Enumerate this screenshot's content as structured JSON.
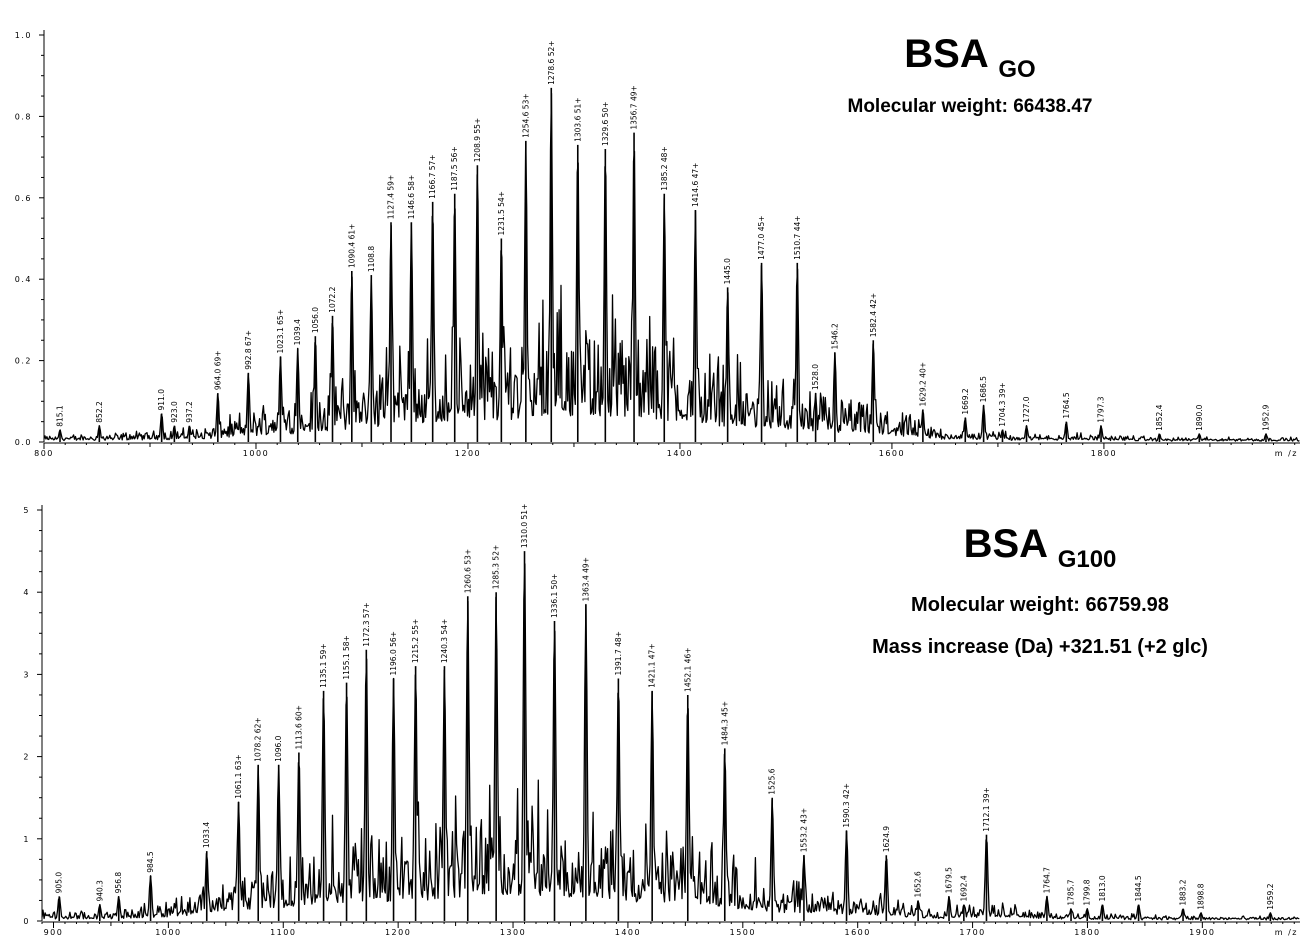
{
  "chart_data": [
    {
      "type": "line",
      "title": "BSA",
      "title_subscript": "GO",
      "subtitle": "Molecular weight: 66438.47",
      "annotation": "",
      "xlabel": "m /z",
      "xlim": [
        800,
        1985
      ],
      "ylim": [
        0,
        1.0
      ],
      "x_ticks": [
        800,
        1000,
        1200,
        1400,
        1600,
        1800
      ],
      "y_ticks": [
        {
          "v": 0.0,
          "label": "0.0"
        },
        {
          "v": 0.2,
          "label": "0.2"
        },
        {
          "v": 0.4,
          "label": "0.4"
        },
        {
          "v": 0.6,
          "label": "0.6"
        },
        {
          "v": 0.8,
          "label": "0.8"
        },
        {
          "v": 1.0,
          "label": "1.0"
        }
      ],
      "peaks": [
        {
          "x": 815.1,
          "y": 0.03,
          "label": "815.1"
        },
        {
          "x": 852.2,
          "y": 0.04,
          "label": "852.2"
        },
        {
          "x": 911.0,
          "y": 0.07,
          "label": "911.0"
        },
        {
          "x": 923.0,
          "y": 0.04,
          "label": "923.0"
        },
        {
          "x": 937.2,
          "y": 0.04,
          "label": "937.2"
        },
        {
          "x": 964.0,
          "y": 0.12,
          "label": "964.0 69+"
        },
        {
          "x": 992.8,
          "y": 0.17,
          "label": "992.8 67+"
        },
        {
          "x": 1023.1,
          "y": 0.21,
          "label": "1023.1 65+"
        },
        {
          "x": 1039.4,
          "y": 0.23,
          "label": "1039.4"
        },
        {
          "x": 1056.0,
          "y": 0.26,
          "label": "1056.0"
        },
        {
          "x": 1072.2,
          "y": 0.31,
          "label": "1072.2"
        },
        {
          "x": 1090.4,
          "y": 0.42,
          "label": "1090.4 61+"
        },
        {
          "x": 1108.8,
          "y": 0.41,
          "label": "1108.8"
        },
        {
          "x": 1127.4,
          "y": 0.54,
          "label": "1127.4 59+"
        },
        {
          "x": 1146.6,
          "y": 0.54,
          "label": "1146.6 58+"
        },
        {
          "x": 1166.7,
          "y": 0.59,
          "label": "1166.7 57+"
        },
        {
          "x": 1187.5,
          "y": 0.61,
          "label": "1187.5 56+"
        },
        {
          "x": 1208.9,
          "y": 0.68,
          "label": "1208.9 55+"
        },
        {
          "x": 1231.5,
          "y": 0.5,
          "label": "1231.5 54+"
        },
        {
          "x": 1254.6,
          "y": 0.74,
          "label": "1254.6 53+"
        },
        {
          "x": 1278.6,
          "y": 0.87,
          "label": "1278.6 52+"
        },
        {
          "x": 1303.6,
          "y": 0.73,
          "label": "1303.6 51+"
        },
        {
          "x": 1329.6,
          "y": 0.72,
          "label": "1329.6 50+"
        },
        {
          "x": 1356.7,
          "y": 0.76,
          "label": "1356.7 49+"
        },
        {
          "x": 1385.2,
          "y": 0.61,
          "label": "1385.2 48+"
        },
        {
          "x": 1414.6,
          "y": 0.57,
          "label": "1414.6 47+"
        },
        {
          "x": 1445.0,
          "y": 0.38,
          "label": "1445.0"
        },
        {
          "x": 1477.0,
          "y": 0.44,
          "label": "1477.0 45+"
        },
        {
          "x": 1510.7,
          "y": 0.44,
          "label": "1510.7 44+"
        },
        {
          "x": 1528.0,
          "y": 0.12,
          "label": "1528.0"
        },
        {
          "x": 1546.2,
          "y": 0.22,
          "label": "1546.2"
        },
        {
          "x": 1582.4,
          "y": 0.25,
          "label": "1582.4 42+"
        },
        {
          "x": 1629.2,
          "y": 0.08,
          "label": "1629.2 40+"
        },
        {
          "x": 1669.2,
          "y": 0.06,
          "label": "1669.2"
        },
        {
          "x": 1686.5,
          "y": 0.09,
          "label": "1686.5"
        },
        {
          "x": 1704.3,
          "y": 0.03,
          "label": "1704.3 39+"
        },
        {
          "x": 1727.0,
          "y": 0.04,
          "label": "1727.0"
        },
        {
          "x": 1764.5,
          "y": 0.05,
          "label": "1764.5"
        },
        {
          "x": 1797.3,
          "y": 0.04,
          "label": "1797.3"
        },
        {
          "x": 1852.4,
          "y": 0.02,
          "label": "1852.4"
        },
        {
          "x": 1890.0,
          "y": 0.02,
          "label": "1890.0"
        },
        {
          "x": 1952.9,
          "y": 0.02,
          "label": "1952.9"
        }
      ]
    },
    {
      "type": "line",
      "title": "BSA",
      "title_subscript": "G100",
      "subtitle": "Molecular weight: 66759.98",
      "annotation": "Mass increase (Da) +321.51 (+2 glc)",
      "xlabel": "m /z",
      "xlim": [
        890,
        1985
      ],
      "ylim": [
        0,
        5
      ],
      "x_ticks": [
        900,
        1000,
        1100,
        1200,
        1300,
        1400,
        1500,
        1600,
        1700,
        1800,
        1900
      ],
      "y_ticks": [
        {
          "v": 0,
          "label": "0"
        },
        {
          "v": 1,
          "label": "1"
        },
        {
          "v": 2,
          "label": "2"
        },
        {
          "v": 3,
          "label": "3"
        },
        {
          "v": 4,
          "label": "4"
        },
        {
          "v": 5,
          "label": "5"
        }
      ],
      "peaks": [
        {
          "x": 905.0,
          "y": 0.3,
          "label": "905.0"
        },
        {
          "x": 940.3,
          "y": 0.2,
          "label": "940.3"
        },
        {
          "x": 956.8,
          "y": 0.3,
          "label": "956.8"
        },
        {
          "x": 984.5,
          "y": 0.55,
          "label": "984.5"
        },
        {
          "x": 1033.4,
          "y": 0.85,
          "label": "1033.4"
        },
        {
          "x": 1061.1,
          "y": 1.45,
          "label": "1061.1 63+"
        },
        {
          "x": 1078.2,
          "y": 1.9,
          "label": "1078.2 62+"
        },
        {
          "x": 1096.0,
          "y": 1.9,
          "label": "1096.0"
        },
        {
          "x": 1113.6,
          "y": 2.05,
          "label": "1113.6 60+"
        },
        {
          "x": 1135.1,
          "y": 2.8,
          "label": "1135.1 59+"
        },
        {
          "x": 1155.1,
          "y": 2.9,
          "label": "1155.1 58+"
        },
        {
          "x": 1172.3,
          "y": 3.3,
          "label": "1172.3 57+"
        },
        {
          "x": 1196.0,
          "y": 2.95,
          "label": "1196.0 56+"
        },
        {
          "x": 1215.2,
          "y": 3.1,
          "label": "1215.2 55+"
        },
        {
          "x": 1240.3,
          "y": 3.1,
          "label": "1240.3 54+"
        },
        {
          "x": 1260.6,
          "y": 3.95,
          "label": "1260.6 53+"
        },
        {
          "x": 1285.3,
          "y": 4.0,
          "label": "1285.3 52+"
        },
        {
          "x": 1310.0,
          "y": 4.5,
          "label": "1310.0 51+"
        },
        {
          "x": 1336.1,
          "y": 3.65,
          "label": "1336.1 50+"
        },
        {
          "x": 1363.4,
          "y": 3.85,
          "label": "1363.4 49+"
        },
        {
          "x": 1391.7,
          "y": 2.95,
          "label": "1391.7 48+"
        },
        {
          "x": 1421.1,
          "y": 2.8,
          "label": "1421.1 47+"
        },
        {
          "x": 1452.1,
          "y": 2.75,
          "label": "1452.1 46+"
        },
        {
          "x": 1484.3,
          "y": 2.1,
          "label": "1484.3 45+"
        },
        {
          "x": 1525.6,
          "y": 1.5,
          "label": "1525.6"
        },
        {
          "x": 1553.2,
          "y": 0.8,
          "label": "1553.2 43+"
        },
        {
          "x": 1590.3,
          "y": 1.1,
          "label": "1590.3 42+"
        },
        {
          "x": 1624.9,
          "y": 0.8,
          "label": "1624.9"
        },
        {
          "x": 1652.6,
          "y": 0.25,
          "label": "1652.6"
        },
        {
          "x": 1679.5,
          "y": 0.3,
          "label": "1679.5"
        },
        {
          "x": 1692.4,
          "y": 0.2,
          "label": "1692.4"
        },
        {
          "x": 1712.1,
          "y": 1.05,
          "label": "1712.1 39+"
        },
        {
          "x": 1764.7,
          "y": 0.3,
          "label": "1764.7"
        },
        {
          "x": 1785.7,
          "y": 0.15,
          "label": "1785.7"
        },
        {
          "x": 1799.8,
          "y": 0.15,
          "label": "1799.8"
        },
        {
          "x": 1813.0,
          "y": 0.2,
          "label": "1813.0"
        },
        {
          "x": 1844.5,
          "y": 0.2,
          "label": "1844.5"
        },
        {
          "x": 1883.2,
          "y": 0.15,
          "label": "1883.2"
        },
        {
          "x": 1898.8,
          "y": 0.1,
          "label": "1898.8"
        },
        {
          "x": 1959.2,
          "y": 0.1,
          "label": "1959.2"
        }
      ]
    }
  ]
}
